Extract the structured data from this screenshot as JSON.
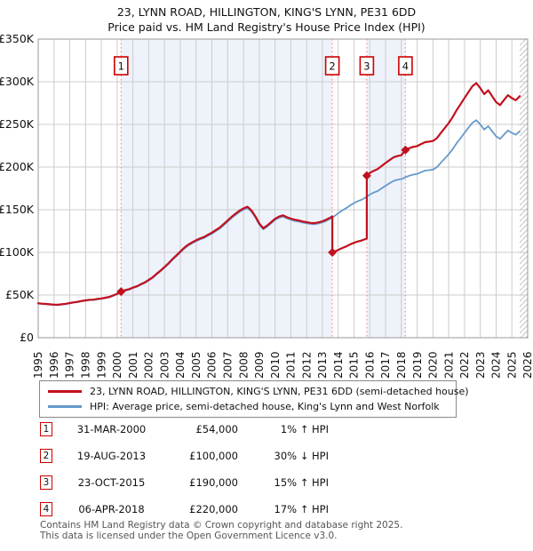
{
  "title": "23, LYNN ROAD, HILLINGTON, KING'S LYNN, PE31 6DD",
  "subtitle": "Price paid vs. HM Land Registry's House Price Index (HPI)",
  "colors": {
    "property_line": "#c2101e",
    "hpi_line": "#6699cc",
    "band": "#eef2fa",
    "sale_line": "#f48a8a",
    "grid": "#cccccc",
    "border": "#999999",
    "hatch": "#bfbfbf",
    "marker_box_border": "#cc0000",
    "legend_border": "#888888",
    "footer_text": "#555555"
  },
  "transactions": [
    {
      "num": "1",
      "date": "31-MAR-2000",
      "price": "£54,000",
      "delta": "1% ↑ HPI"
    },
    {
      "num": "2",
      "date": "19-AUG-2013",
      "price": "£100,000",
      "delta": "30% ↓ HPI"
    },
    {
      "num": "3",
      "date": "23-OCT-2015",
      "price": "£190,000",
      "delta": "15% ↑ HPI"
    },
    {
      "num": "4",
      "date": "06-APR-2018",
      "price": "£220,000",
      "delta": "17% ↑ HPI"
    }
  ],
  "footer": {
    "line1": "Contains HM Land Registry data © Crown copyright and database right 2025.",
    "line2": "This data is licensed under the Open Government Licence v3.0."
  },
  "chart_data": {
    "type": "line",
    "title": "23, LYNN ROAD, HILLINGTON, KING'S LYNN, PE31 6DD — Price paid vs. HPI",
    "xlabel": "",
    "ylabel": "",
    "xlim": [
      1995,
      2026
    ],
    "ylim": [
      0,
      350
    ],
    "units": "GBP thousands",
    "grid": true,
    "legend_position": "bottom",
    "legend": [
      "23, LYNN ROAD, HILLINGTON, KING'S LYNN, PE31 6DD (semi-detached house)",
      "HPI: Average price, semi-detached house, King's Lynn and West Norfolk"
    ],
    "x_ticks": [
      1995,
      1996,
      1997,
      1998,
      1999,
      2000,
      2001,
      2002,
      2003,
      2004,
      2005,
      2006,
      2007,
      2008,
      2009,
      2010,
      2011,
      2012,
      2013,
      2014,
      2015,
      2016,
      2017,
      2018,
      2019,
      2020,
      2021,
      2022,
      2023,
      2024,
      2025,
      2026
    ],
    "y_ticks": [
      {
        "value": 0,
        "label": "£0"
      },
      {
        "value": 50,
        "label": "£50K"
      },
      {
        "value": 100,
        "label": "£100K"
      },
      {
        "value": 150,
        "label": "£150K"
      },
      {
        "value": 200,
        "label": "£200K"
      },
      {
        "value": 250,
        "label": "£250K"
      },
      {
        "value": 300,
        "label": "£300K"
      },
      {
        "value": 350,
        "label": "£350K"
      }
    ],
    "ownership_bands": [
      [
        2000.25,
        2013.63
      ],
      [
        2015.81,
        2018.26
      ]
    ],
    "future_hatch": [
      2025.5,
      2026
    ],
    "sales": [
      {
        "n": "1",
        "x": 2000.25,
        "price_k": 54,
        "date": "31-MAR-2000",
        "vs_hpi": "1% above HPI"
      },
      {
        "n": "2",
        "x": 2013.63,
        "price_k": 100,
        "date": "19-AUG-2013",
        "vs_hpi": "30% below HPI"
      },
      {
        "n": "3",
        "x": 2015.81,
        "price_k": 190,
        "date": "23-OCT-2015",
        "vs_hpi": "15% above HPI"
      },
      {
        "n": "4",
        "x": 2018.26,
        "price_k": 220,
        "date": "06-APR-2018",
        "vs_hpi": "17% above HPI"
      }
    ],
    "series": [
      {
        "name": "HPI: Average price, semi-detached house, King's Lynn and West Norfolk",
        "color": "#6699cc",
        "width": 1.8,
        "points": [
          [
            1995,
            40
          ],
          [
            1995.25,
            39.5
          ],
          [
            1995.5,
            39.2
          ],
          [
            1995.75,
            38.8
          ],
          [
            1996,
            38.4
          ],
          [
            1996.25,
            38.2
          ],
          [
            1996.5,
            38.9
          ],
          [
            1996.75,
            39.4
          ],
          [
            1997,
            40.2
          ],
          [
            1997.25,
            41.1
          ],
          [
            1997.5,
            41.7
          ],
          [
            1997.75,
            42.7
          ],
          [
            1998,
            43.3
          ],
          [
            1998.25,
            44.1
          ],
          [
            1998.5,
            44.2
          ],
          [
            1998.75,
            45
          ],
          [
            1999,
            45.5
          ],
          [
            1999.25,
            46.4
          ],
          [
            1999.5,
            47.3
          ],
          [
            1999.75,
            49.1
          ],
          [
            2000,
            51
          ],
          [
            2000.25,
            53.5
          ],
          [
            2000.5,
            55.1
          ],
          [
            2000.75,
            56.3
          ],
          [
            2001,
            58.1
          ],
          [
            2001.25,
            59.7
          ],
          [
            2001.5,
            62.1
          ],
          [
            2001.75,
            64.2
          ],
          [
            2002,
            67.1
          ],
          [
            2002.25,
            70.1
          ],
          [
            2002.5,
            74.2
          ],
          [
            2002.75,
            78
          ],
          [
            2003,
            82.1
          ],
          [
            2003.25,
            86.3
          ],
          [
            2003.5,
            91.2
          ],
          [
            2003.75,
            95.5
          ],
          [
            2004,
            100
          ],
          [
            2004.25,
            104.4
          ],
          [
            2004.5,
            108
          ],
          [
            2004.75,
            110.7
          ],
          [
            2005,
            113.1
          ],
          [
            2005.25,
            115.2
          ],
          [
            2005.5,
            116.8
          ],
          [
            2005.75,
            119.5
          ],
          [
            2006,
            121.9
          ],
          [
            2006.25,
            125
          ],
          [
            2006.5,
            127.9
          ],
          [
            2006.75,
            131.9
          ],
          [
            2007,
            136
          ],
          [
            2007.25,
            140.3
          ],
          [
            2007.5,
            144
          ],
          [
            2007.75,
            147.4
          ],
          [
            2008,
            150.1
          ],
          [
            2008.25,
            152
          ],
          [
            2008.5,
            147.8
          ],
          [
            2008.75,
            141
          ],
          [
            2009,
            132.8
          ],
          [
            2009.25,
            127
          ],
          [
            2009.5,
            130.2
          ],
          [
            2009.75,
            134.1
          ],
          [
            2010,
            138
          ],
          [
            2010.25,
            140.6
          ],
          [
            2010.5,
            142
          ],
          [
            2010.75,
            139.9
          ],
          [
            2011,
            138.2
          ],
          [
            2011.25,
            136.9
          ],
          [
            2011.5,
            136.1
          ],
          [
            2011.75,
            134.9
          ],
          [
            2012,
            134.1
          ],
          [
            2012.25,
            133.3
          ],
          [
            2012.5,
            133
          ],
          [
            2012.75,
            133.9
          ],
          [
            2013,
            135.1
          ],
          [
            2013.25,
            137
          ],
          [
            2013.5,
            139.4
          ],
          [
            2013.63,
            140.8
          ],
          [
            2013.75,
            142.4
          ],
          [
            2014,
            145.9
          ],
          [
            2014.25,
            149.1
          ],
          [
            2014.5,
            151.9
          ],
          [
            2014.75,
            155
          ],
          [
            2015,
            157.8
          ],
          [
            2015.25,
            160.1
          ],
          [
            2015.5,
            161.9
          ],
          [
            2015.81,
            165.2
          ],
          [
            2016,
            167.8
          ],
          [
            2016.25,
            170.1
          ],
          [
            2016.5,
            171.9
          ],
          [
            2016.75,
            175
          ],
          [
            2017,
            178.1
          ],
          [
            2017.25,
            181
          ],
          [
            2017.5,
            183.8
          ],
          [
            2017.75,
            185.1
          ],
          [
            2018,
            186
          ],
          [
            2018.26,
            188
          ],
          [
            2018.5,
            189.9
          ],
          [
            2018.75,
            191.1
          ],
          [
            2019,
            192
          ],
          [
            2019.25,
            194
          ],
          [
            2019.5,
            195.9
          ],
          [
            2019.75,
            196.4
          ],
          [
            2020,
            197.1
          ],
          [
            2020.25,
            199.9
          ],
          [
            2020.5,
            205
          ],
          [
            2020.75,
            210.1
          ],
          [
            2021,
            215
          ],
          [
            2021.25,
            221
          ],
          [
            2021.5,
            227.9
          ],
          [
            2021.75,
            234
          ],
          [
            2022,
            240.1
          ],
          [
            2022.25,
            246
          ],
          [
            2022.5,
            252
          ],
          [
            2022.75,
            255
          ],
          [
            2023,
            250
          ],
          [
            2023.25,
            244
          ],
          [
            2023.5,
            247.9
          ],
          [
            2023.75,
            242
          ],
          [
            2024,
            236
          ],
          [
            2024.25,
            233
          ],
          [
            2024.5,
            238
          ],
          [
            2024.75,
            243
          ],
          [
            2025,
            240
          ],
          [
            2025.25,
            237.9
          ],
          [
            2025.5,
            242
          ]
        ]
      },
      {
        "name": "23, LYNN ROAD, HILLINGTON, KING'S LYNN, PE31 6DD (semi-detached house)",
        "color": "#c2101e",
        "width": 2.2,
        "points": [
          [
            1995,
            40.4
          ],
          [
            1995.25,
            39.9
          ],
          [
            1995.5,
            39.6
          ],
          [
            1995.75,
            39.2
          ],
          [
            1996,
            38.8
          ],
          [
            1996.25,
            38.6
          ],
          [
            1996.5,
            39.3
          ],
          [
            1996.75,
            39.8
          ],
          [
            1997,
            40.6
          ],
          [
            1997.25,
            41.5
          ],
          [
            1997.5,
            42.1
          ],
          [
            1997.75,
            43.1
          ],
          [
            1998,
            43.7
          ],
          [
            1998.25,
            44.5
          ],
          [
            1998.5,
            44.6
          ],
          [
            1998.75,
            45.5
          ],
          [
            1999,
            46
          ],
          [
            1999.25,
            46.9
          ],
          [
            1999.5,
            47.8
          ],
          [
            1999.75,
            49.6
          ],
          [
            2000,
            51.5
          ],
          [
            2000.25,
            54
          ],
          [
            2000.5,
            55.7
          ],
          [
            2000.75,
            56.9
          ],
          [
            2001,
            58.7
          ],
          [
            2001.25,
            60.3
          ],
          [
            2001.5,
            62.7
          ],
          [
            2001.75,
            64.8
          ],
          [
            2002,
            67.8
          ],
          [
            2002.25,
            70.8
          ],
          [
            2002.5,
            74.9
          ],
          [
            2002.75,
            78.8
          ],
          [
            2003,
            82.9
          ],
          [
            2003.25,
            87.2
          ],
          [
            2003.5,
            92.1
          ],
          [
            2003.75,
            96.5
          ],
          [
            2004,
            101
          ],
          [
            2004.25,
            105.4
          ],
          [
            2004.5,
            109.1
          ],
          [
            2004.75,
            111.8
          ],
          [
            2005,
            114.2
          ],
          [
            2005.25,
            116.4
          ],
          [
            2005.5,
            118
          ],
          [
            2005.75,
            120.7
          ],
          [
            2006,
            123.1
          ],
          [
            2006.25,
            126.3
          ],
          [
            2006.5,
            129.2
          ],
          [
            2006.75,
            133.2
          ],
          [
            2007,
            137.4
          ],
          [
            2007.25,
            141.7
          ],
          [
            2007.5,
            145.4
          ],
          [
            2007.75,
            148.9
          ],
          [
            2008,
            151.6
          ],
          [
            2008.25,
            153.5
          ],
          [
            2008.5,
            149.3
          ],
          [
            2008.75,
            142.4
          ],
          [
            2009,
            134.1
          ],
          [
            2009.25,
            128.3
          ],
          [
            2009.5,
            131.5
          ],
          [
            2009.75,
            135.4
          ],
          [
            2010,
            139.4
          ],
          [
            2010.25,
            142
          ],
          [
            2010.5,
            143.4
          ],
          [
            2010.75,
            141.3
          ],
          [
            2011,
            139.6
          ],
          [
            2011.25,
            138.3
          ],
          [
            2011.5,
            137.5
          ],
          [
            2011.75,
            136.2
          ],
          [
            2012,
            135.4
          ],
          [
            2012.25,
            134.6
          ],
          [
            2012.5,
            134.3
          ],
          [
            2012.75,
            135.2
          ],
          [
            2013,
            136.5
          ],
          [
            2013.25,
            138.4
          ],
          [
            2013.5,
            140.8
          ],
          [
            2013.63,
            142.2
          ],
          [
            2013.63,
            100
          ],
          [
            2013.75,
            100.8
          ],
          [
            2014,
            102.9
          ],
          [
            2014.25,
            105.1
          ],
          [
            2014.5,
            107
          ],
          [
            2014.75,
            109.3
          ],
          [
            2015,
            111.2
          ],
          [
            2015.25,
            112.8
          ],
          [
            2015.5,
            114.1
          ],
          [
            2015.81,
            116.3
          ],
          [
            2015.81,
            190
          ],
          [
            2016,
            193.1
          ],
          [
            2016.25,
            195.6
          ],
          [
            2016.5,
            197.7
          ],
          [
            2016.75,
            201.2
          ],
          [
            2017,
            204.8
          ],
          [
            2017.25,
            208.1
          ],
          [
            2017.5,
            211.4
          ],
          [
            2017.75,
            212.9
          ],
          [
            2018,
            213.9
          ],
          [
            2018.26,
            220
          ],
          [
            2018.5,
            222.2
          ],
          [
            2018.75,
            223.6
          ],
          [
            2019,
            224.6
          ],
          [
            2019.25,
            227
          ],
          [
            2019.5,
            229.2
          ],
          [
            2019.75,
            229.8
          ],
          [
            2020,
            230.6
          ],
          [
            2020.25,
            233.9
          ],
          [
            2020.5,
            239.9
          ],
          [
            2020.75,
            245.8
          ],
          [
            2021,
            251.6
          ],
          [
            2021.25,
            258.6
          ],
          [
            2021.5,
            266.7
          ],
          [
            2021.75,
            273.8
          ],
          [
            2022,
            280.9
          ],
          [
            2022.25,
            287.8
          ],
          [
            2022.5,
            294.8
          ],
          [
            2022.75,
            298.4
          ],
          [
            2023,
            292.5
          ],
          [
            2023.25,
            285.5
          ],
          [
            2023.5,
            290
          ],
          [
            2023.75,
            283.1
          ],
          [
            2024,
            276.1
          ],
          [
            2024.25,
            272.6
          ],
          [
            2024.5,
            278.5
          ],
          [
            2024.75,
            284.3
          ],
          [
            2025,
            280.8
          ],
          [
            2025.25,
            278.3
          ],
          [
            2025.5,
            283.1
          ]
        ]
      }
    ]
  }
}
